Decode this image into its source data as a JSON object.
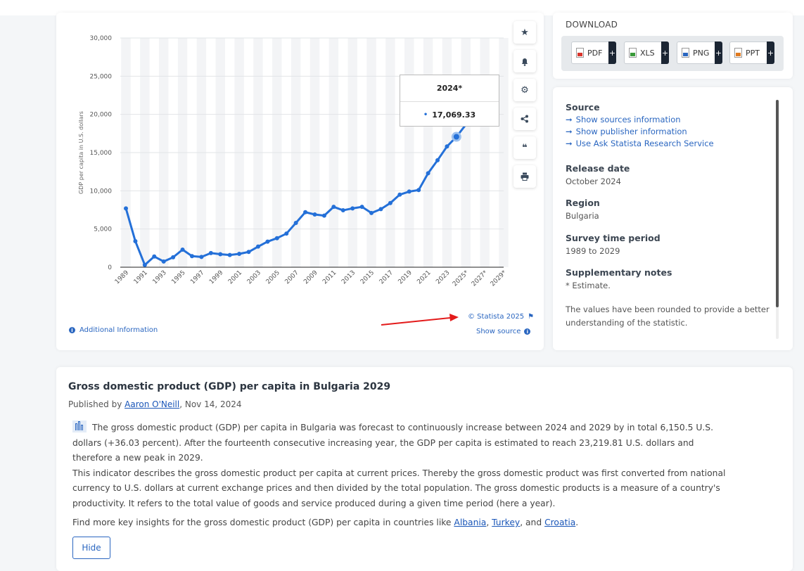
{
  "chart_data": {
    "type": "line",
    "title": "",
    "xlabel": "",
    "ylabel": "GDP per capita in U.S. dollars",
    "ylim": [
      0,
      30000
    ],
    "yticks": [
      "0",
      "5,000",
      "10,000",
      "15,000",
      "20,000",
      "25,000",
      "30,000"
    ],
    "xtick_labels": [
      "1989",
      "1991",
      "1993",
      "1995",
      "1997",
      "1999",
      "2001",
      "2003",
      "2005",
      "2007",
      "2009",
      "2011",
      "2013",
      "2015",
      "2017",
      "2019",
      "2021",
      "2023",
      "2025*",
      "2027*",
      "2029*"
    ],
    "x": [
      1989,
      1990,
      1991,
      1992,
      1993,
      1994,
      1995,
      1996,
      1997,
      1998,
      1999,
      2000,
      2001,
      2002,
      2003,
      2004,
      2005,
      2006,
      2007,
      2008,
      2009,
      2010,
      2011,
      2012,
      2013,
      2014,
      2015,
      2016,
      2017,
      2018,
      2019,
      2020,
      2021,
      2022,
      2023,
      2024
    ],
    "values": [
      7700,
      3400,
      300,
      1400,
      750,
      1300,
      2300,
      1450,
      1350,
      1850,
      1700,
      1600,
      1750,
      2000,
      2700,
      3350,
      3800,
      4400,
      5800,
      7200,
      6900,
      6750,
      7900,
      7450,
      7700,
      7900,
      7100,
      7600,
      8400,
      9500,
      9900,
      10100,
      12300,
      14000,
      15800,
      17069.33
    ],
    "highlight": {
      "label": "2024*",
      "value": "17,069.33"
    },
    "grid": true
  },
  "chart": {
    "copyright": "© Statista 2025",
    "show_source": "Show source",
    "additional_info": "Additional Information",
    "actions": [
      "star-icon",
      "bell-icon",
      "gear-icon",
      "share-icon",
      "quote-icon",
      "print-icon"
    ]
  },
  "download": {
    "title": "DOWNLOAD",
    "buttons": [
      {
        "label": "PDF",
        "color": "#d9342b"
      },
      {
        "label": "XLS",
        "color": "#3a9a3a"
      },
      {
        "label": "PNG",
        "color": "#2a66c0"
      },
      {
        "label": "PPT",
        "color": "#e07a1f"
      }
    ]
  },
  "info": {
    "source_title": "Source",
    "source_links": [
      "Show sources information",
      "Show publisher information",
      "Use Ask Statista Research Service"
    ],
    "release_title": "Release date",
    "release_value": "October 2024",
    "region_title": "Region",
    "region_value": "Bulgaria",
    "survey_title": "Survey time period",
    "survey_value": "1989 to 2029",
    "notes_title": "Supplementary notes",
    "notes_value": "* Estimate.",
    "notes_extra": "The values have been rounded to provide a better understanding of the statistic."
  },
  "description": {
    "title": "Gross domestic product (GDP) per capita in Bulgaria 2029",
    "published_prefix": "Published by ",
    "author": "Aaron O'Neill",
    "published_date": ", Nov 14, 2024",
    "para1": "The gross domestic product (GDP) per capita in Bulgaria was forecast to continuously increase between 2024 and 2029 by in total 6,150.5 U.S. dollars (+36.03 percent). After the fourteenth consecutive increasing year, the GDP per capita is estimated to reach 23,219.81 U.S. dollars and therefore a new peak in 2029.",
    "para2": "This indicator describes the gross domestic product per capita at current prices. Thereby the gross domestic product was first converted from national currency to U.S. dollars at current exchange prices and then divided by the total population. The gross domestic products is a measure of a country's productivity. It refers to the total value of goods and service produced during a given time period (here a year).",
    "para3_prefix": "Find more key insights for the gross domestic product (GDP) per capita in countries like ",
    "country1": "Albania",
    "sep1": ", ",
    "country2": "Turkey",
    "sep2": ", and ",
    "country3": "Croatia",
    "para3_suffix": ".",
    "hide_label": "Hide"
  }
}
